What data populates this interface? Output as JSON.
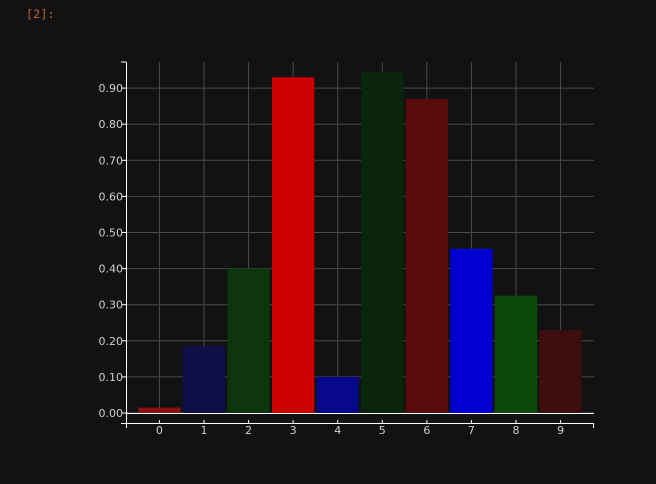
{
  "cell": {
    "prompt": "[2]:"
  },
  "colors": {
    "background": "#121212",
    "axis": "#ffffff",
    "grid": "#4a4a4a",
    "text": "#cfcfcf",
    "prompt": "#c4623a"
  },
  "chart_data": {
    "type": "bar",
    "title": "",
    "xlabel": "",
    "ylabel": "",
    "categories": [
      "0",
      "1",
      "2",
      "3",
      "4",
      "5",
      "6",
      "7",
      "8",
      "9"
    ],
    "values": [
      0.015,
      0.185,
      0.4,
      0.93,
      0.1,
      0.945,
      0.87,
      0.455,
      0.325,
      0.23
    ],
    "bar_colors": [
      "#8a1111",
      "#101048",
      "#0d360d",
      "#cc0000",
      "#08088a",
      "#0b260b",
      "#5a0c0c",
      "#0000d0",
      "#0a4a0a",
      "#3c0e0e"
    ],
    "ylim": [
      -0.03,
      0.97
    ],
    "xlim": [
      -0.75,
      9.75
    ],
    "yticks": [
      0.0,
      0.1,
      0.2,
      0.3,
      0.4,
      0.5,
      0.6,
      0.7,
      0.8,
      0.9
    ],
    "ytick_labels": [
      "0.00",
      "0.10",
      "0.20",
      "0.30",
      "0.40",
      "0.50",
      "0.60",
      "0.70",
      "0.80",
      "0.90"
    ],
    "xticks": [
      0,
      1,
      2,
      3,
      4,
      5,
      6,
      7,
      8,
      9
    ],
    "xtick_labels": [
      "0",
      "1",
      "2",
      "3",
      "4",
      "5",
      "6",
      "7",
      "8",
      "9"
    ],
    "bar_width": 0.95,
    "grid": true,
    "legend": "none"
  }
}
